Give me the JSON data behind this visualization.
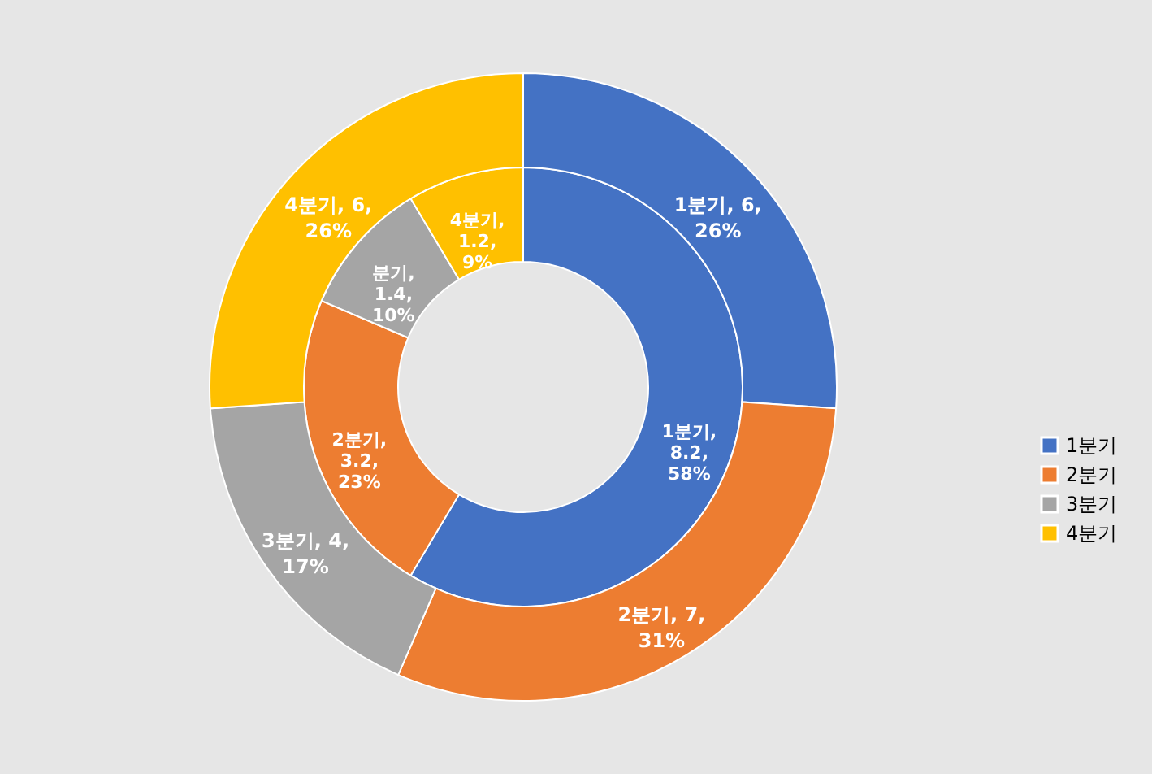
{
  "chart_data": {
    "type": "donut",
    "categories": [
      "1분기",
      "2분기",
      "3분기",
      "4분기"
    ],
    "colors": [
      "#4472c4",
      "#ed7d31",
      "#a5a5a5",
      "#ffc000"
    ],
    "series": [
      {
        "values": [
          8.2,
          3.2,
          1.4,
          1.2
        ],
        "value_labels": [
          "1분기, 8.2, 58%",
          "2분기, 3.2, 23%",
          "분기, 1.4, 10%",
          "4분기, 1.2, 9%"
        ]
      },
      {
        "values": [
          6,
          7,
          4,
          6
        ],
        "value_labels": [
          "1분기, 6, 26%",
          "2분기, 7, 31%",
          "3분기, 4, 17%",
          "4분기, 6, 26%"
        ]
      }
    ],
    "legend": "right"
  }
}
